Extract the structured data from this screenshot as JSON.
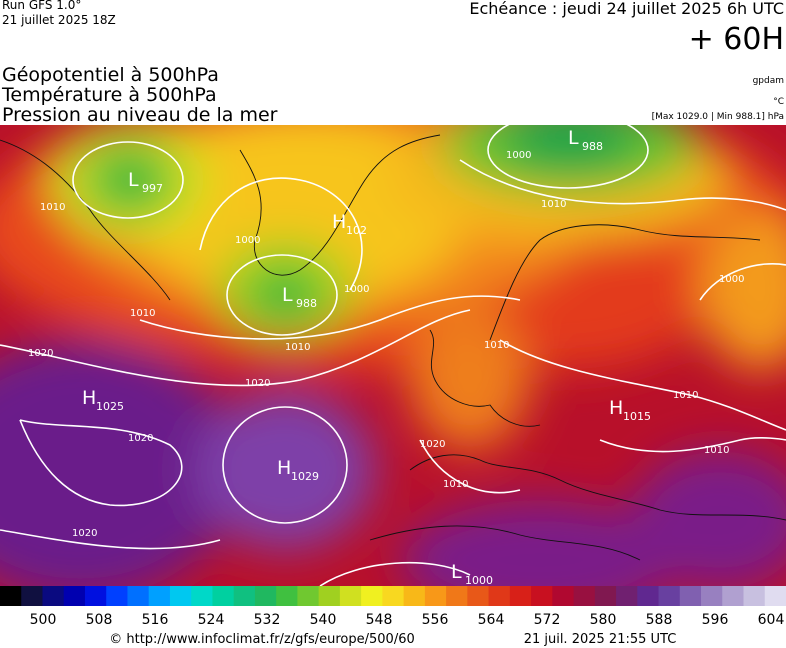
{
  "header": {
    "run": "Run GFS 1.0°",
    "run_date": "21 juillet 2025 18Z",
    "forecast": "Echéance : jeudi 24 juillet 2025 6h UTC",
    "lead": "+ 60H"
  },
  "legend": {
    "lines": [
      "Géopotentiel à 500hPa",
      "Température à 500hPa",
      "Pression au niveau de la mer"
    ],
    "units": [
      "gpdam",
      "°C",
      "[Max 1029.0 | Min 988.1] hPa"
    ]
  },
  "centers": [
    {
      "letter": "L",
      "value": "997"
    },
    {
      "letter": "H",
      "value": "102"
    },
    {
      "letter": "L",
      "value": "988"
    },
    {
      "letter": "L",
      "value": "988"
    },
    {
      "letter": "H",
      "value": "1025"
    },
    {
      "letter": "H",
      "value": "1029"
    },
    {
      "letter": "H",
      "value": "1015"
    },
    {
      "letter": "L",
      "value": "1000"
    }
  ],
  "isobar_labels": [
    "1010",
    "1010",
    "1020",
    "1020",
    "1020",
    "1020",
    "1010",
    "1000",
    "1000",
    "1000",
    "1010",
    "1010",
    "1000",
    "1010",
    "1010",
    "1020",
    "1010"
  ],
  "colorbar": {
    "labels": [
      500,
      508,
      516,
      524,
      532,
      540,
      548,
      556,
      564,
      572,
      580,
      588,
      596,
      604
    ]
  },
  "footer": {
    "url": "© http://www.infoclimat.fr/z/gfs/europe/500/60",
    "timestamp": "21 juil. 2025 21:55 UTC"
  }
}
